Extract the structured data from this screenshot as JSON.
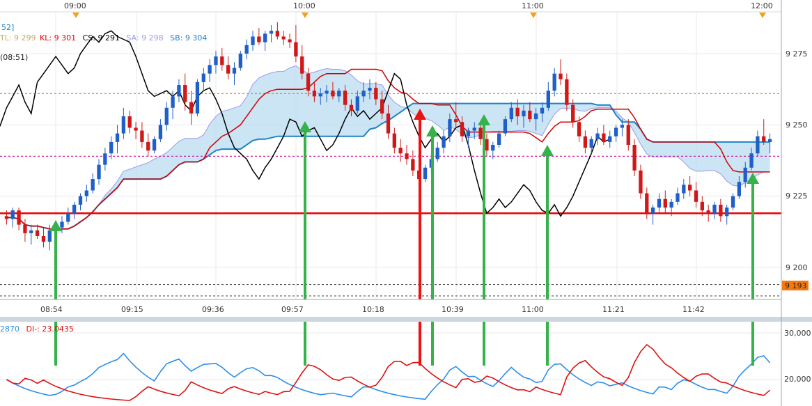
{
  "colors": {
    "tenkan": "#ee0000",
    "kijun": "#d00000",
    "chikou": "#000000",
    "senkou_a": "#9b9be8",
    "senkou_b": "#1e83c8",
    "cloud_bull": "#b9dcf0",
    "cloud_bear": "#dcdcf8",
    "bull_candle": "#1f5fc9",
    "bear_candle": "#d01818",
    "di_plus": "#2c8ee8",
    "di_minus": "#dd1111",
    "arrow_green": "#36b24a",
    "arrow_red": "#ee1111",
    "h_red": "#ee0000",
    "h_orange": "#f47a10",
    "h_magenta": "#cc1aa8",
    "grid": "#e8e8e8",
    "axis_text": "#333333",
    "price_tag_bg": "#f47a10"
  },
  "top_axis": {
    "labels": [
      "09:00",
      "10:00",
      "11:00",
      "12:00"
    ]
  },
  "ichimoku_legend": {
    "prefix": "52]",
    "tl": "TL: 9 299",
    "kl": "KL: 9 301",
    "cs": "CS: 9 291",
    "sa": "SA: 9 298",
    "sb": "SB: 9 304",
    "line2": "(08:51)"
  },
  "price_axis": {
    "ticks": [
      "9 275",
      "9 250",
      "9 225",
      "9 200"
    ],
    "current_price_tag": "9 193"
  },
  "time_axis": {
    "ticks": [
      "08:54",
      "09:15",
      "09:36",
      "09:57",
      "10:18",
      "10:39",
      "11:00",
      "11:21",
      "11:42"
    ]
  },
  "dmi_legend": {
    "plus": "2870",
    "minus": "DI-: 23.0435"
  },
  "dmi_axis": {
    "ticks": [
      "30,000",
      "20,000"
    ]
  },
  "chart_data": {
    "type": "candlestick",
    "instrument_price_range": [
      9185,
      9290
    ],
    "price_ticks": [
      9275,
      9250,
      9225,
      9200
    ],
    "horizontal_levels": [
      {
        "price": 9261,
        "style": "dotted",
        "color": "orange"
      },
      {
        "price": 9239,
        "style": "dotted",
        "color": "magenta"
      },
      {
        "price": 9219,
        "style": "solid",
        "color": "red"
      },
      {
        "price": 9194,
        "style": "dotted",
        "color": "gray"
      },
      {
        "price": 9190,
        "style": "dotted",
        "color": "gray"
      }
    ],
    "candles_ohlc": [
      [
        9218,
        9220,
        9215,
        9217
      ],
      [
        9217,
        9221,
        9214,
        9220
      ],
      [
        9220,
        9221,
        9213,
        9215
      ],
      [
        9215,
        9217,
        9209,
        9212
      ],
      [
        9212,
        9215,
        9208,
        9213
      ],
      [
        9213,
        9215,
        9210,
        9211
      ],
      [
        9211,
        9214,
        9207,
        9209
      ],
      [
        9209,
        9215,
        9206,
        9213
      ],
      [
        9213,
        9216,
        9211,
        9214
      ],
      [
        9214,
        9218,
        9212,
        9216
      ],
      [
        9216,
        9221,
        9215,
        9219
      ],
      [
        9219,
        9223,
        9217,
        9222
      ],
      [
        9222,
        9226,
        9220,
        9225
      ],
      [
        9225,
        9229,
        9223,
        9227
      ],
      [
        9227,
        9233,
        9226,
        9231
      ],
      [
        9231,
        9238,
        9229,
        9236
      ],
      [
        9236,
        9242,
        9234,
        9240
      ],
      [
        9240,
        9246,
        9238,
        9244
      ],
      [
        9244,
        9250,
        9240,
        9247
      ],
      [
        9247,
        9256,
        9245,
        9253
      ],
      [
        9253,
        9255,
        9247,
        9249
      ],
      [
        9249,
        9251,
        9245,
        9248
      ],
      [
        9248,
        9251,
        9242,
        9244
      ],
      [
        9244,
        9247,
        9239,
        9241
      ],
      [
        9241,
        9246,
        9240,
        9245
      ],
      [
        9245,
        9252,
        9244,
        9250
      ],
      [
        9250,
        9258,
        9248,
        9256
      ],
      [
        9256,
        9262,
        9252,
        9260
      ],
      [
        9260,
        9266,
        9258,
        9264
      ],
      [
        9264,
        9268,
        9255,
        9258
      ],
      [
        9258,
        9262,
        9250,
        9254
      ],
      [
        9254,
        9266,
        9253,
        9265
      ],
      [
        9265,
        9270,
        9262,
        9268
      ],
      [
        9268,
        9273,
        9265,
        9271
      ],
      [
        9271,
        9276,
        9268,
        9274
      ],
      [
        9274,
        9277,
        9269,
        9271
      ],
      [
        9271,
        9274,
        9266,
        9268
      ],
      [
        9268,
        9272,
        9264,
        9270
      ],
      [
        9270,
        9276,
        9269,
        9275
      ],
      [
        9275,
        9280,
        9273,
        9278
      ],
      [
        9278,
        9283,
        9276,
        9281
      ],
      [
        9281,
        9284,
        9278,
        9279
      ],
      [
        9279,
        9283,
        9276,
        9282
      ],
      [
        9282,
        9285,
        9279,
        9283
      ],
      [
        9283,
        9286,
        9280,
        9281
      ],
      [
        9281,
        9283,
        9278,
        9280
      ],
      [
        9280,
        9282,
        9277,
        9279
      ],
      [
        9279,
        9285,
        9272,
        9274
      ],
      [
        9274,
        9278,
        9266,
        9268
      ],
      [
        9268,
        9270,
        9260,
        9262
      ],
      [
        9262,
        9265,
        9258,
        9260
      ],
      [
        9260,
        9263,
        9257,
        9261
      ],
      [
        9261,
        9264,
        9258,
        9262
      ],
      [
        9262,
        9265,
        9259,
        9260
      ],
      [
        9260,
        9263,
        9258,
        9262
      ],
      [
        9262,
        9264,
        9255,
        9257
      ],
      [
        9257,
        9259,
        9253,
        9255
      ],
      [
        9255,
        9262,
        9254,
        9260
      ],
      [
        9260,
        9265,
        9258,
        9262
      ],
      [
        9262,
        9266,
        9259,
        9263
      ],
      [
        9263,
        9265,
        9257,
        9259
      ],
      [
        9259,
        9262,
        9252,
        9254
      ],
      [
        9254,
        9257,
        9245,
        9247
      ],
      [
        9247,
        9249,
        9240,
        9242
      ],
      [
        9242,
        9245,
        9237,
        9240
      ],
      [
        9240,
        9243,
        9236,
        9238
      ],
      [
        9238,
        9241,
        9232,
        9234
      ],
      [
        9234,
        9237,
        9229,
        9231
      ],
      [
        9231,
        9236,
        9230,
        9235
      ],
      [
        9235,
        9240,
        9233,
        9238
      ],
      [
        9238,
        9244,
        9237,
        9242
      ],
      [
        9242,
        9248,
        9240,
        9246
      ],
      [
        9246,
        9254,
        9244,
        9252
      ],
      [
        9252,
        9258,
        9249,
        9251
      ],
      [
        9251,
        9253,
        9244,
        9246
      ],
      [
        9246,
        9249,
        9242,
        9248
      ],
      [
        9248,
        9251,
        9245,
        9249
      ],
      [
        9249,
        9251,
        9243,
        9245
      ],
      [
        9245,
        9247,
        9239,
        9241
      ],
      [
        9241,
        9244,
        9238,
        9243
      ],
      [
        9243,
        9248,
        9242,
        9247
      ],
      [
        9247,
        9253,
        9246,
        9252
      ],
      [
        9252,
        9258,
        9251,
        9256
      ],
      [
        9256,
        9259,
        9250,
        9253
      ],
      [
        9253,
        9257,
        9249,
        9255
      ],
      [
        9255,
        9258,
        9251,
        9252
      ],
      [
        9252,
        9256,
        9248,
        9254
      ],
      [
        9254,
        9258,
        9251,
        9256
      ],
      [
        9256,
        9265,
        9255,
        9262
      ],
      [
        9262,
        9270,
        9260,
        9268
      ],
      [
        9268,
        9273,
        9264,
        9266
      ],
      [
        9266,
        9268,
        9255,
        9257
      ],
      [
        9257,
        9259,
        9249,
        9251
      ],
      [
        9251,
        9253,
        9244,
        9246
      ],
      [
        9246,
        9248,
        9240,
        9242
      ],
      [
        9242,
        9246,
        9240,
        9245
      ],
      [
        9245,
        9249,
        9243,
        9247
      ],
      [
        9247,
        9250,
        9243,
        9244
      ],
      [
        9244,
        9248,
        9242,
        9246
      ],
      [
        9246,
        9250,
        9244,
        9249
      ],
      [
        9249,
        9252,
        9246,
        9250
      ],
      [
        9250,
        9252,
        9241,
        9243
      ],
      [
        9243,
        9245,
        9232,
        9234
      ],
      [
        9234,
        9236,
        9224,
        9226
      ],
      [
        9226,
        9228,
        9217,
        9219
      ],
      [
        9219,
        9222,
        9215,
        9221
      ],
      [
        9221,
        9226,
        9219,
        9224
      ],
      [
        9224,
        9227,
        9219,
        9221
      ],
      [
        9221,
        9224,
        9218,
        9223
      ],
      [
        9223,
        9228,
        9222,
        9226
      ],
      [
        9226,
        9231,
        9224,
        9229
      ],
      [
        9229,
        9232,
        9225,
        9227
      ],
      [
        9227,
        9230,
        9221,
        9223
      ],
      [
        9223,
        9225,
        9218,
        9220
      ],
      [
        9220,
        9222,
        9216,
        9219
      ],
      [
        9219,
        9223,
        9217,
        9222
      ],
      [
        9222,
        9224,
        9216,
        9218
      ],
      [
        9218,
        9222,
        9215,
        9221
      ],
      [
        9221,
        9226,
        9220,
        9225
      ],
      [
        9225,
        9232,
        9224,
        9230
      ],
      [
        9230,
        9237,
        9228,
        9235
      ],
      [
        9235,
        9242,
        9234,
        9240
      ],
      [
        9240,
        9248,
        9239,
        9246
      ],
      [
        9246,
        9252,
        9243,
        9244
      ],
      [
        9244,
        9247,
        9240,
        9245
      ]
    ],
    "dmi_range": [
      15,
      32
    ],
    "dmi_ticks": [
      30,
      20
    ]
  }
}
